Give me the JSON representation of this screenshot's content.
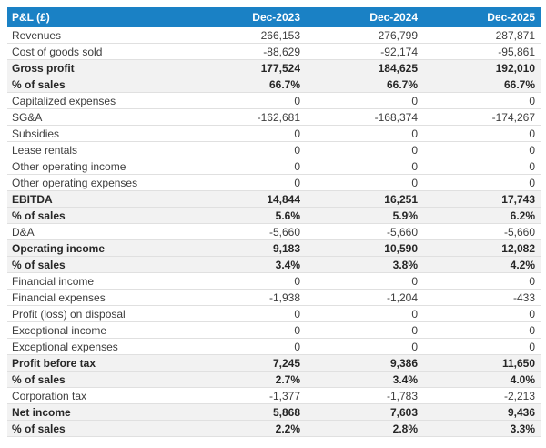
{
  "colors": {
    "header_bg": "#1a81c5",
    "header_text": "#ffffff",
    "shaded_row_bg": "#f2f2f2",
    "row_border": "#e0e0e0"
  },
  "chart_data": {
    "type": "table",
    "title": "P&L (£)",
    "currency": "£",
    "columns": [
      "P&L (£)",
      "Dec-2023",
      "Dec-2024",
      "Dec-2025"
    ],
    "rows": [
      {
        "label": "Revenues",
        "values": [
          "266,153",
          "276,799",
          "287,871"
        ],
        "bold": false
      },
      {
        "label": "Cost of goods sold",
        "values": [
          "-88,629",
          "-92,174",
          "-95,861"
        ],
        "bold": false
      },
      {
        "label": "Gross profit",
        "values": [
          "177,524",
          "184,625",
          "192,010"
        ],
        "bold": true
      },
      {
        "label": "% of sales",
        "values": [
          "66.7%",
          "66.7%",
          "66.7%"
        ],
        "bold": true
      },
      {
        "label": "Capitalized expenses",
        "values": [
          "0",
          "0",
          "0"
        ],
        "bold": false
      },
      {
        "label": "SG&A",
        "values": [
          "-162,681",
          "-168,374",
          "-174,267"
        ],
        "bold": false
      },
      {
        "label": "Subsidies",
        "values": [
          "0",
          "0",
          "0"
        ],
        "bold": false
      },
      {
        "label": "Lease rentals",
        "values": [
          "0",
          "0",
          "0"
        ],
        "bold": false
      },
      {
        "label": "Other operating income",
        "values": [
          "0",
          "0",
          "0"
        ],
        "bold": false
      },
      {
        "label": "Other operating expenses",
        "values": [
          "0",
          "0",
          "0"
        ],
        "bold": false
      },
      {
        "label": "EBITDA",
        "values": [
          "14,844",
          "16,251",
          "17,743"
        ],
        "bold": true
      },
      {
        "label": "% of sales",
        "values": [
          "5.6%",
          "5.9%",
          "6.2%"
        ],
        "bold": true
      },
      {
        "label": "D&A",
        "values": [
          "-5,660",
          "-5,660",
          "-5,660"
        ],
        "bold": false
      },
      {
        "label": "Operating income",
        "values": [
          "9,183",
          "10,590",
          "12,082"
        ],
        "bold": true
      },
      {
        "label": "% of sales",
        "values": [
          "3.4%",
          "3.8%",
          "4.2%"
        ],
        "bold": true
      },
      {
        "label": "Financial income",
        "values": [
          "0",
          "0",
          "0"
        ],
        "bold": false
      },
      {
        "label": "Financial expenses",
        "values": [
          "-1,938",
          "-1,204",
          "-433"
        ],
        "bold": false
      },
      {
        "label": "Profit (loss) on disposal",
        "values": [
          "0",
          "0",
          "0"
        ],
        "bold": false
      },
      {
        "label": "Exceptional income",
        "values": [
          "0",
          "0",
          "0"
        ],
        "bold": false
      },
      {
        "label": "Exceptional expenses",
        "values": [
          "0",
          "0",
          "0"
        ],
        "bold": false
      },
      {
        "label": "Profit before tax",
        "values": [
          "7,245",
          "9,386",
          "11,650"
        ],
        "bold": true
      },
      {
        "label": "% of sales",
        "values": [
          "2.7%",
          "3.4%",
          "4.0%"
        ],
        "bold": true
      },
      {
        "label": "Corporation tax",
        "values": [
          "-1,377",
          "-1,783",
          "-2,213"
        ],
        "bold": false
      },
      {
        "label": "Net income",
        "values": [
          "5,868",
          "7,603",
          "9,436"
        ],
        "bold": true
      },
      {
        "label": "% of sales",
        "values": [
          "2.2%",
          "2.8%",
          "3.3%"
        ],
        "bold": true
      }
    ]
  }
}
